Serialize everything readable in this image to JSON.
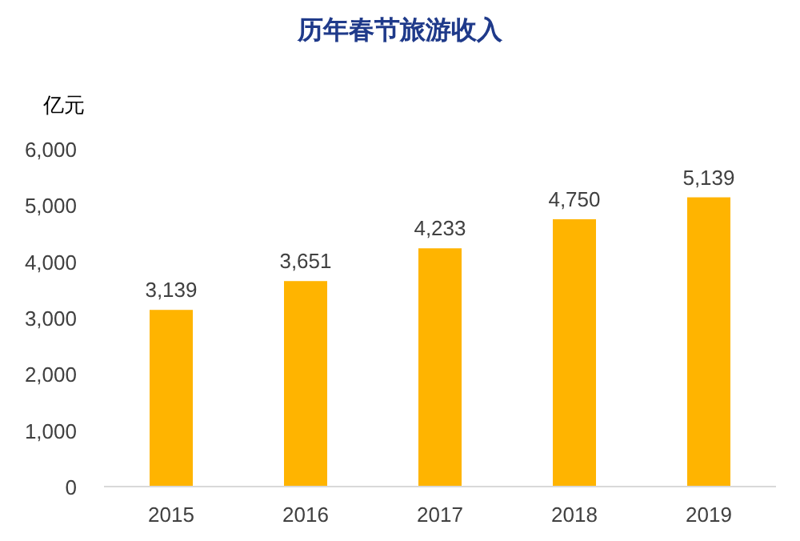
{
  "chart_data": {
    "type": "bar",
    "title": "历年春节旅游收入",
    "ylabel": "亿元",
    "categories": [
      "2015",
      "2016",
      "2017",
      "2018",
      "2019"
    ],
    "values": [
      3139,
      3651,
      4233,
      4750,
      5139
    ],
    "color": "#ffb400",
    "ylim": [
      0,
      6000
    ],
    "yticks": [
      0,
      {
        "value": 1000,
        "label": "1,000"
      },
      {
        "value": 2000,
        "label": "2,000"
      },
      {
        "value": 3000,
        "label": "3,000"
      },
      {
        "value": 4000,
        "label": "4,000"
      },
      {
        "value": 5000,
        "label": "5,000"
      },
      {
        "value": 6000,
        "label": "6,000"
      }
    ],
    "value_labels": [
      "3,139",
      "3,651",
      "4,233",
      "4,750",
      "5,139"
    ],
    "grid": false
  }
}
